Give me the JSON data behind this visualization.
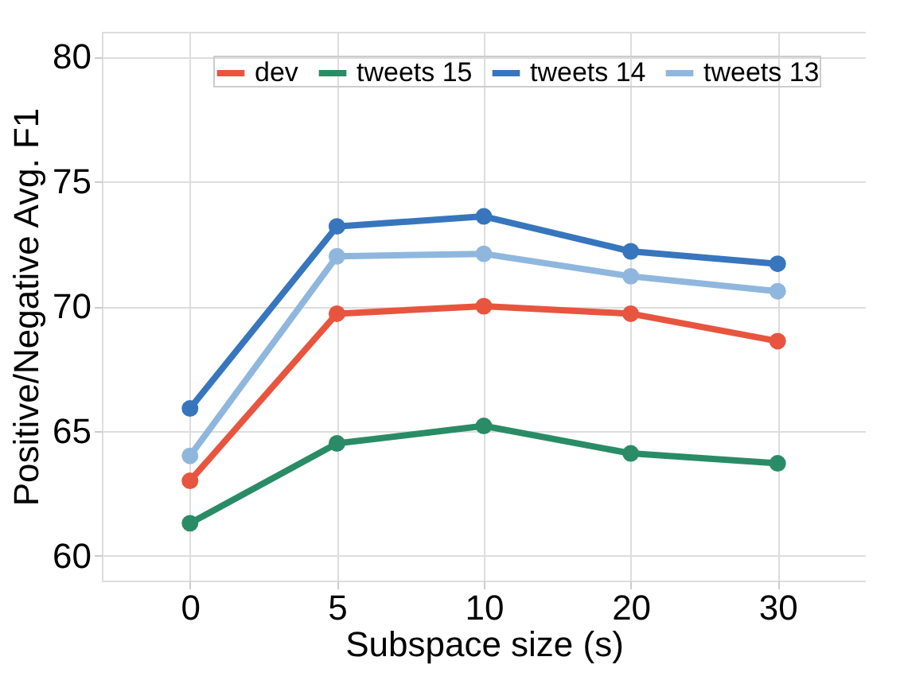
{
  "chart_data": {
    "type": "line",
    "xlabel": "Subspace size (s)",
    "ylabel": "Positive/Negative Avg. F1",
    "categories": [
      "0",
      "5",
      "10",
      "20",
      "30"
    ],
    "series": [
      {
        "name": "dev",
        "color": "#e8553e",
        "values": [
          63.0,
          69.7,
          70.0,
          69.7,
          68.6
        ]
      },
      {
        "name": "tweets 15",
        "color": "#2a8c66",
        "values": [
          61.3,
          64.5,
          65.2,
          64.1,
          63.7
        ]
      },
      {
        "name": "tweets 14",
        "color": "#3776bd",
        "values": [
          65.9,
          73.2,
          73.6,
          72.2,
          71.7
        ]
      },
      {
        "name": "tweets 13",
        "color": "#8fb7de",
        "values": [
          64.0,
          72.0,
          72.1,
          71.2,
          70.6
        ]
      }
    ],
    "ylim": [
      59,
      81
    ],
    "yticks": [
      60,
      65,
      70,
      75,
      80
    ],
    "grid": true,
    "legend": "top",
    "marker": "circle",
    "line_style": "solid"
  }
}
